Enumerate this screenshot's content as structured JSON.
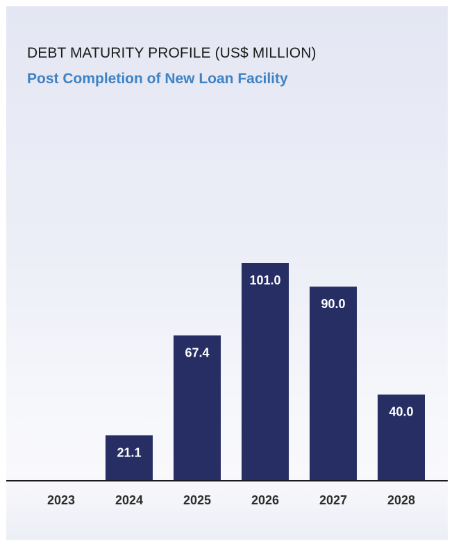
{
  "chart_data": {
    "type": "bar",
    "title": "DEBT MATURITY PROFILE (US$ MILLION)",
    "subtitle": "Post Completion of New Loan Facility",
    "categories": [
      "2023",
      "2024",
      "2025",
      "2026",
      "2027",
      "2028"
    ],
    "values": [
      0,
      21.1,
      67.4,
      101.0,
      90.0,
      40.0
    ],
    "value_labels": [
      "",
      "21.1",
      "67.4",
      "101.0",
      "90.0",
      "40.0"
    ],
    "xlabel": "",
    "ylabel": "",
    "ylim": [
      0,
      101.0
    ],
    "grid": false,
    "legend": "none",
    "colors": {
      "bar": "#262e63",
      "axis": "#1a1a1a",
      "title": "#1b1b1b",
      "subtitle": "#3f82c4"
    }
  }
}
